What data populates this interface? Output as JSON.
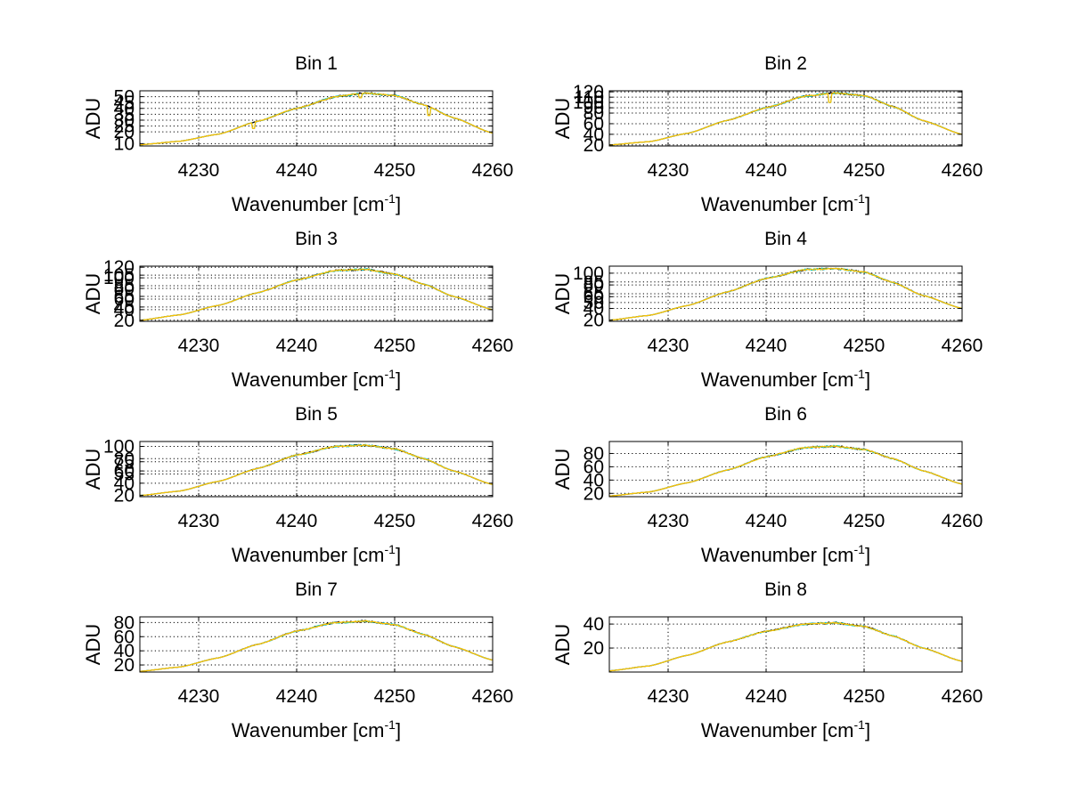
{
  "colors": {
    "background": "#ffffff",
    "axis": "#000000",
    "series_overlay": [
      "#000000",
      "#00cccc",
      "#ffc000"
    ]
  },
  "chart_data": [
    {
      "type": "line",
      "title": "Bin 1",
      "xlabel": "Wavenumber [cm",
      "xlabel_sup": "-1",
      "xlabel_close": "]",
      "ylabel": "ADU",
      "xlim": [
        4224,
        4260
      ],
      "ylim": [
        8,
        55
      ],
      "xticks": [
        4230,
        4240,
        4250,
        4260
      ],
      "yticks": [
        10,
        20,
        25,
        30,
        35,
        40,
        45,
        50
      ],
      "grid": true,
      "x": [
        4224,
        4228,
        4232,
        4236,
        4240,
        4244,
        4247,
        4250,
        4253,
        4256,
        4260
      ],
      "y": [
        9,
        12,
        18,
        29,
        40,
        50,
        53,
        51,
        43,
        32,
        19
      ],
      "dips": [
        {
          "x": 4235.6,
          "y": 23
        },
        {
          "x": 4253.5,
          "y": 34
        },
        {
          "x": 4246.5,
          "y": 49
        }
      ]
    },
    {
      "type": "line",
      "title": "Bin 2",
      "xlabel": "Wavenumber [cm",
      "xlabel_sup": "-1",
      "xlabel_close": "]",
      "ylabel": "ADU",
      "xlim": [
        4224,
        4260
      ],
      "ylim": [
        18,
        122
      ],
      "xticks": [
        4230,
        4240,
        4250,
        4260
      ],
      "yticks": [
        20,
        40,
        60,
        80,
        90,
        100,
        110,
        120
      ],
      "grid": true,
      "x": [
        4224,
        4228,
        4232,
        4236,
        4240,
        4244,
        4247,
        4250,
        4253,
        4256,
        4260
      ],
      "y": [
        20,
        26,
        42,
        66,
        90,
        112,
        118,
        113,
        92,
        66,
        40
      ],
      "dips": [
        {
          "x": 4246.5,
          "y": 100
        }
      ]
    },
    {
      "type": "line",
      "title": "Bin 3",
      "xlabel": "Wavenumber [cm",
      "xlabel_sup": "-1",
      "xlabel_close": "]",
      "ylabel": "ADU",
      "xlim": [
        4224,
        4260
      ],
      "ylim": [
        18,
        122
      ],
      "xticks": [
        4230,
        4240,
        4250,
        4260
      ],
      "yticks": [
        20,
        40,
        45,
        60,
        65,
        80,
        85,
        100,
        105,
        120
      ],
      "grid": true,
      "x": [
        4224,
        4228,
        4232,
        4236,
        4240,
        4244,
        4247,
        4250,
        4253,
        4256,
        4260
      ],
      "y": [
        20,
        30,
        48,
        72,
        96,
        114,
        116,
        107,
        88,
        65,
        40
      ],
      "dips": []
    },
    {
      "type": "line",
      "title": "Bin 4",
      "xlabel": "Wavenumber [cm",
      "xlabel_sup": "-1",
      "xlabel_close": "]",
      "ylabel": "ADU",
      "xlim": [
        4224,
        4260
      ],
      "ylim": [
        18,
        112
      ],
      "xticks": [
        4230,
        4240,
        4250,
        4260
      ],
      "yticks": [
        20,
        40,
        50,
        60,
        65,
        80,
        85,
        100
      ],
      "grid": true,
      "x": [
        4224,
        4228,
        4232,
        4236,
        4240,
        4244,
        4247,
        4250,
        4253,
        4256,
        4260
      ],
      "y": [
        20,
        28,
        45,
        68,
        91,
        106,
        108,
        102,
        84,
        62,
        40
      ],
      "dips": []
    },
    {
      "type": "line",
      "title": "Bin 5",
      "xlabel": "Wavenumber [cm",
      "xlabel_sup": "-1",
      "xlabel_close": "]",
      "ylabel": "ADU",
      "xlim": [
        4224,
        4260
      ],
      "ylim": [
        18,
        108
      ],
      "xticks": [
        4230,
        4240,
        4250,
        4260
      ],
      "yticks": [
        20,
        40,
        55,
        60,
        75,
        80,
        100
      ],
      "grid": true,
      "x": [
        4224,
        4228,
        4232,
        4236,
        4240,
        4244,
        4247,
        4250,
        4253,
        4256,
        4260
      ],
      "y": [
        20,
        27,
        43,
        64,
        86,
        100,
        102,
        96,
        80,
        60,
        38
      ],
      "dips": []
    },
    {
      "type": "line",
      "title": "Bin 6",
      "xlabel": "Wavenumber [cm",
      "xlabel_sup": "-1",
      "xlabel_close": "]",
      "ylabel": "ADU",
      "xlim": [
        4224,
        4260
      ],
      "ylim": [
        15,
        98
      ],
      "xticks": [
        4230,
        4240,
        4250,
        4260
      ],
      "yticks": [
        20,
        40,
        60,
        80
      ],
      "grid": true,
      "x": [
        4224,
        4228,
        4232,
        4236,
        4240,
        4244,
        4247,
        4250,
        4253,
        4256,
        4260
      ],
      "y": [
        16,
        22,
        36,
        55,
        75,
        89,
        91,
        86,
        72,
        54,
        34
      ],
      "dips": []
    },
    {
      "type": "line",
      "title": "Bin 7",
      "xlabel": "Wavenumber [cm",
      "xlabel_sup": "-1",
      "xlabel_close": "]",
      "ylabel": "ADU",
      "xlim": [
        4224,
        4260
      ],
      "ylim": [
        10,
        88
      ],
      "xticks": [
        4230,
        4240,
        4250,
        4260
      ],
      "yticks": [
        20,
        40,
        60,
        80
      ],
      "grid": true,
      "x": [
        4224,
        4228,
        4232,
        4236,
        4240,
        4244,
        4247,
        4250,
        4253,
        4256,
        4260
      ],
      "y": [
        11,
        17,
        30,
        49,
        68,
        80,
        82,
        77,
        63,
        46,
        27
      ],
      "dips": []
    },
    {
      "type": "line",
      "title": "Bin 8",
      "xlabel": "Wavenumber [cm",
      "xlabel_sup": "-1",
      "xlabel_close": "]",
      "ylabel": "ADU",
      "xlim": [
        4224,
        4260
      ],
      "ylim": [
        0,
        46
      ],
      "xticks": [
        4230,
        4240,
        4250,
        4260
      ],
      "yticks": [
        20,
        40
      ],
      "grid": true,
      "x": [
        4224,
        4228,
        4232,
        4236,
        4240,
        4244,
        4247,
        4250,
        4253,
        4256,
        4260
      ],
      "y": [
        1,
        5,
        14,
        25,
        34,
        40,
        41,
        38,
        30,
        20,
        9
      ],
      "dips": []
    }
  ]
}
